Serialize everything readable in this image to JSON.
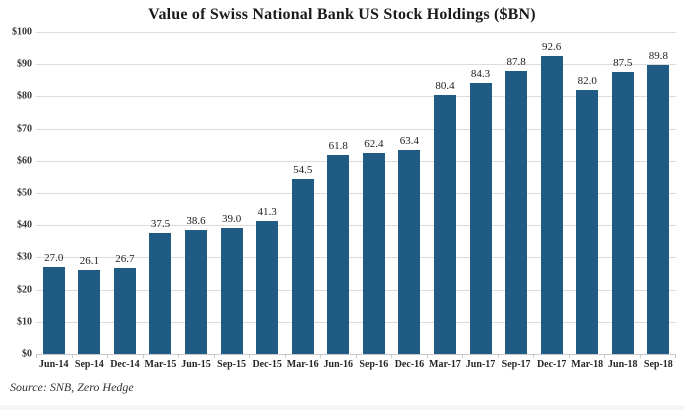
{
  "page": {
    "title": "Value of Swiss National Bank US Stock Holdings ($BN)",
    "source": "Source: SNB, Zero Hedge"
  },
  "colors": {
    "bar": "#1F5B83",
    "gridline": "#DCDCDC",
    "axis_line": "#C8C8C8",
    "text": "#262626"
  },
  "chart_data": {
    "type": "bar",
    "title": "Value of Swiss National Bank US Stock Holdings ($BN)",
    "categories": [
      "Jun-14",
      "Sep-14",
      "Dec-14",
      "Mar-15",
      "Jun-15",
      "Sep-15",
      "Dec-15",
      "Mar-16",
      "Jun-16",
      "Sep-16",
      "Dec-16",
      "Mar-17",
      "Jun-17",
      "Sep-17",
      "Dec-17",
      "Mar-18",
      "Jun-18",
      "Sep-18"
    ],
    "values": [
      27.0,
      26.1,
      26.7,
      37.5,
      38.6,
      39.0,
      41.3,
      54.5,
      61.8,
      62.4,
      63.4,
      80.4,
      84.3,
      87.8,
      92.6,
      82.0,
      87.5,
      89.8
    ],
    "value_label_decimals": 1,
    "xlabel": "",
    "ylabel": "",
    "ylim": [
      0,
      100
    ],
    "ytick_step": 10,
    "ytick_labels": [
      "$100",
      "$90",
      "$80",
      "$70",
      "$60",
      "$50",
      "$40",
      "$30",
      "$20",
      "$10",
      "$0"
    ],
    "grid": true,
    "legend_position": "none",
    "source": "Source: SNB, Zero Hedge"
  }
}
